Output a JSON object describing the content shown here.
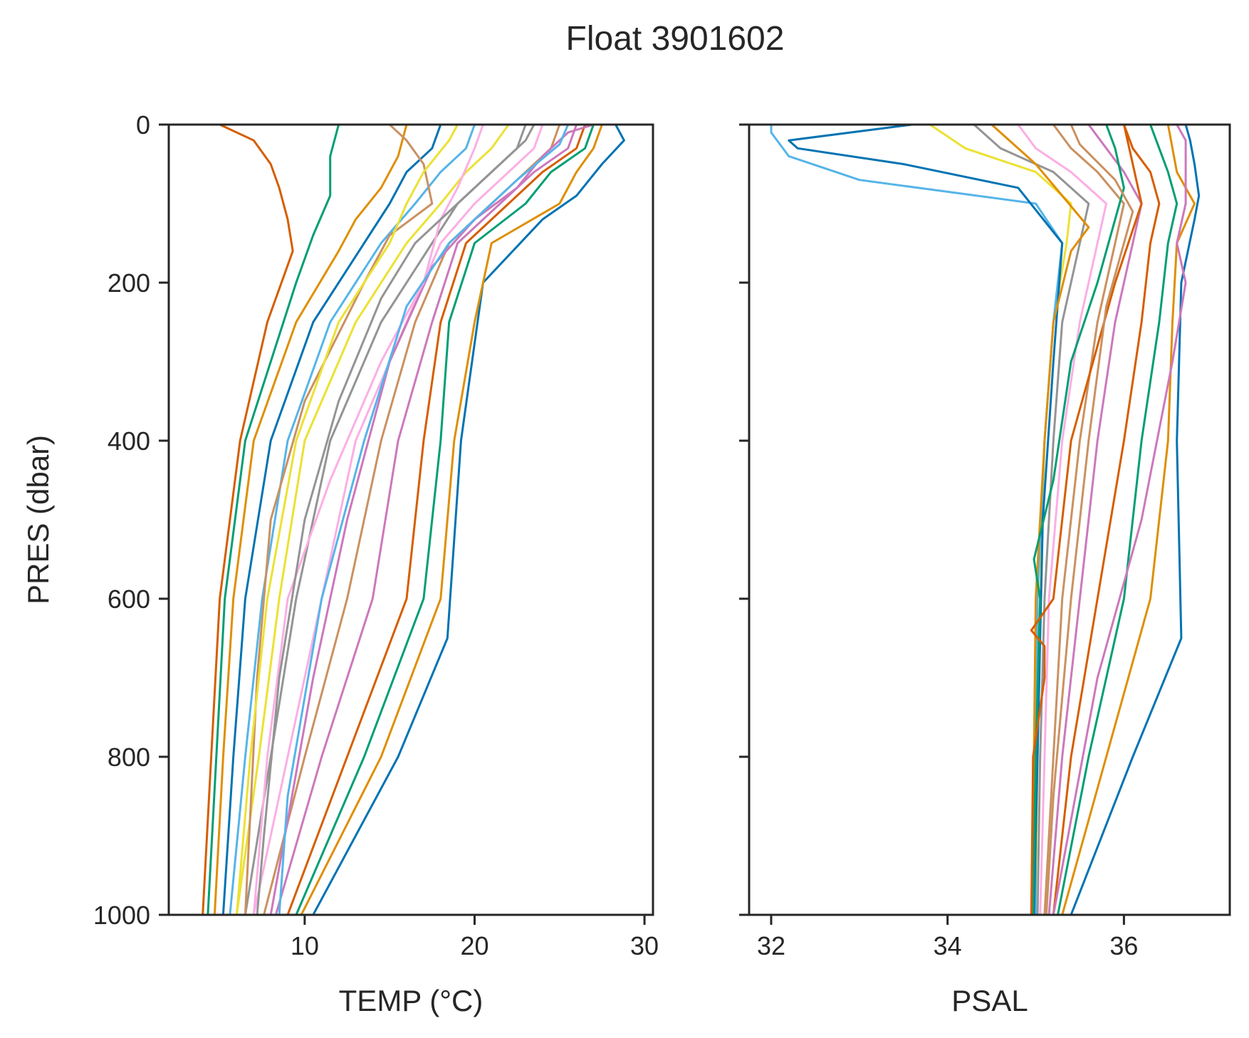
{
  "figure": {
    "title": "Float 3901602"
  },
  "palette": [
    "#0173b2",
    "#de8f05",
    "#029e73",
    "#d55e00",
    "#cc78bc",
    "#ca9161",
    "#fbafe4",
    "#949494",
    "#ece133",
    "#56b4e9"
  ],
  "chart_data": [
    {
      "type": "line",
      "panel": "left",
      "xlabel": "TEMP (°C)",
      "ylabel": "PRES (dbar)",
      "xlim": [
        2,
        30.5
      ],
      "ylim": [
        1000,
        0
      ],
      "y_inverted": true,
      "xticks": [
        10,
        20,
        30
      ],
      "yticks": [
        0,
        200,
        400,
        600,
        800,
        1000
      ],
      "grid": false,
      "legend": "none",
      "note": "approx. 100 Argo temperature profiles; representative subset captured below",
      "series": [
        {
          "pres": [
            0,
            20,
            50,
            90,
            120,
            200,
            400,
            650,
            800,
            1000
          ],
          "values": [
            28.3,
            28.8,
            27.5,
            26.0,
            24.0,
            20.5,
            19.2,
            18.4,
            15.5,
            10.5
          ]
        },
        {
          "pres": [
            0,
            30,
            60,
            100,
            150,
            250,
            400,
            600,
            800,
            1000
          ],
          "values": [
            27.5,
            27.0,
            26.0,
            25.0,
            21.0,
            20.0,
            18.8,
            18.0,
            14.5,
            9.8
          ]
        },
        {
          "pres": [
            0,
            30,
            60,
            100,
            150,
            250,
            400,
            600,
            800,
            1000
          ],
          "values": [
            27.0,
            26.5,
            24.5,
            23.0,
            20.0,
            18.5,
            18.0,
            17.0,
            13.5,
            9.5
          ]
        },
        {
          "pres": [
            0,
            30,
            60,
            100,
            150,
            250,
            400,
            600,
            800,
            1000
          ],
          "values": [
            26.5,
            26.0,
            24.0,
            22.0,
            19.5,
            18.0,
            17.0,
            16.0,
            12.5,
            9.0
          ]
        },
        {
          "pres": [
            0,
            30,
            60,
            100,
            150,
            250,
            400,
            600,
            800,
            1000
          ],
          "values": [
            26.0,
            25.5,
            23.5,
            21.5,
            19.0,
            17.5,
            15.5,
            14.0,
            11.0,
            8.3
          ]
        },
        {
          "pres": [
            0,
            30,
            60,
            100,
            150,
            250,
            400,
            600,
            800,
            1000
          ],
          "values": [
            25.0,
            24.5,
            23.0,
            21.0,
            18.5,
            16.5,
            14.5,
            12.5,
            10.0,
            7.6
          ]
        },
        {
          "pres": [
            0,
            30,
            60,
            100,
            150,
            250,
            400,
            600,
            800,
            1000
          ],
          "values": [
            24.0,
            23.5,
            22.0,
            20.0,
            18.0,
            16.0,
            13.0,
            11.0,
            9.0,
            7.0
          ]
        },
        {
          "pres": [
            0,
            30,
            60,
            100,
            150,
            250,
            400,
            600,
            800,
            1000
          ],
          "values": [
            23.0,
            22.5,
            21.0,
            19.0,
            17.5,
            14.5,
            11.5,
            9.5,
            8.0,
            6.5
          ]
        },
        {
          "pres": [
            0,
            30,
            60,
            100,
            150,
            250,
            400,
            600,
            800,
            1000
          ],
          "values": [
            22.0,
            21.0,
            19.5,
            18.0,
            16.0,
            13.0,
            10.0,
            8.5,
            7.3,
            6.0
          ]
        },
        {
          "pres": [
            0,
            30,
            60,
            100,
            150,
            250,
            400,
            600,
            800,
            1000
          ],
          "values": [
            20.0,
            19.5,
            18.0,
            16.5,
            14.5,
            11.5,
            9.0,
            7.5,
            6.5,
            5.6
          ]
        },
        {
          "pres": [
            0,
            30,
            60,
            100,
            150,
            250,
            400,
            600,
            800,
            1000
          ],
          "values": [
            18.0,
            17.5,
            16.0,
            15.0,
            13.5,
            10.5,
            8.0,
            6.5,
            5.8,
            5.2
          ]
        },
        {
          "pres": [
            0,
            40,
            80,
            120,
            160,
            250,
            400,
            600,
            800,
            1000
          ],
          "values": [
            16.0,
            15.5,
            14.5,
            13.0,
            12.0,
            9.5,
            7.0,
            5.8,
            5.2,
            4.7
          ]
        },
        {
          "pres": [
            0,
            40,
            90,
            140,
            200,
            300,
            400,
            600,
            800,
            1000
          ],
          "values": [
            12.0,
            11.5,
            11.5,
            10.5,
            9.5,
            8.0,
            6.5,
            5.3,
            4.8,
            4.3
          ]
        },
        {
          "pres": [
            0,
            20,
            50,
            80,
            120,
            160,
            250,
            400,
            600,
            800,
            1000
          ],
          "values": [
            5.0,
            7.0,
            8.0,
            8.5,
            9.0,
            9.3,
            7.8,
            6.2,
            5.0,
            4.5,
            4.0
          ]
        },
        {
          "pres": [
            0,
            10,
            40,
            80,
            120,
            180,
            300,
            500,
            700,
            1000
          ],
          "values": [
            27.0,
            25.5,
            24.0,
            22.5,
            20.0,
            17.5,
            15.0,
            12.5,
            10.5,
            8.0
          ]
        },
        {
          "pres": [
            0,
            20,
            50,
            100,
            140,
            200,
            350,
            500,
            700,
            1000
          ],
          "values": [
            15.0,
            16.0,
            17.0,
            17.5,
            15.0,
            13.5,
            10.0,
            8.0,
            7.2,
            6.5
          ]
        },
        {
          "pres": [
            0,
            30,
            80,
            120,
            200,
            300,
            450,
            600,
            800,
            1000
          ],
          "values": [
            20.5,
            20.0,
            19.0,
            18.0,
            17.0,
            14.5,
            11.5,
            9.0,
            7.8,
            7.0
          ]
        },
        {
          "pres": [
            0,
            20,
            60,
            100,
            150,
            220,
            350,
            500,
            700,
            900,
            1000
          ],
          "values": [
            23.5,
            23.0,
            21.0,
            19.0,
            16.5,
            14.5,
            12.0,
            10.0,
            8.5,
            7.6,
            7.2
          ]
        },
        {
          "pres": [
            0,
            20,
            60,
            100,
            150,
            250,
            400,
            600,
            800,
            1000
          ],
          "values": [
            19.0,
            18.5,
            17.0,
            16.0,
            15.0,
            12.0,
            9.5,
            7.8,
            6.8,
            6.0
          ]
        },
        {
          "pres": [
            0,
            25,
            70,
            110,
            150,
            230,
            400,
            600,
            850,
            1000
          ],
          "values": [
            25.5,
            25.0,
            22.5,
            20.5,
            18.5,
            16.0,
            13.5,
            11.0,
            9.0,
            8.5
          ]
        }
      ]
    },
    {
      "type": "line",
      "panel": "right",
      "xlabel": "PSAL",
      "ylabel": "",
      "xlim": [
        31.75,
        37.2
      ],
      "ylim": [
        1000,
        0
      ],
      "y_inverted": true,
      "xticks": [
        32,
        34,
        36
      ],
      "yticks": [
        0,
        200,
        400,
        600,
        800,
        1000
      ],
      "grid": false,
      "legend": "none",
      "note": "approx. 100 Argo salinity profiles; representative subset captured below",
      "series": [
        {
          "pres": [
            0,
            20,
            50,
            90,
            120,
            200,
            400,
            650,
            800,
            1000
          ],
          "values": [
            36.7,
            36.75,
            36.8,
            36.85,
            36.8,
            36.65,
            36.6,
            36.65,
            36.1,
            35.4
          ]
        },
        {
          "pres": [
            0,
            30,
            60,
            100,
            150,
            250,
            400,
            600,
            800,
            1000
          ],
          "values": [
            36.5,
            36.55,
            36.6,
            36.8,
            36.6,
            36.55,
            36.5,
            36.3,
            35.8,
            35.3
          ]
        },
        {
          "pres": [
            0,
            30,
            60,
            100,
            150,
            250,
            400,
            600,
            800,
            1000
          ],
          "values": [
            36.3,
            36.4,
            36.5,
            36.6,
            36.5,
            36.4,
            36.2,
            36.0,
            35.6,
            35.25
          ]
        },
        {
          "pres": [
            0,
            30,
            60,
            100,
            150,
            250,
            400,
            600,
            800,
            1000
          ],
          "values": [
            36.0,
            36.1,
            36.3,
            36.4,
            36.3,
            36.2,
            36.0,
            35.7,
            35.4,
            35.2
          ]
        },
        {
          "pres": [
            0,
            30,
            60,
            100,
            150,
            250,
            400,
            600,
            800,
            1000
          ],
          "values": [
            35.6,
            35.8,
            36.0,
            36.2,
            36.1,
            35.9,
            35.7,
            35.5,
            35.3,
            35.15
          ]
        },
        {
          "pres": [
            0,
            30,
            60,
            100,
            150,
            250,
            400,
            600,
            800,
            1000
          ],
          "values": [
            35.2,
            35.4,
            35.7,
            36.0,
            35.9,
            35.7,
            35.5,
            35.3,
            35.2,
            35.1
          ]
        },
        {
          "pres": [
            0,
            30,
            60,
            100,
            150,
            250,
            400,
            600,
            800,
            1000
          ],
          "values": [
            34.8,
            35.0,
            35.4,
            35.8,
            35.7,
            35.5,
            35.3,
            35.15,
            35.1,
            35.05
          ]
        },
        {
          "pres": [
            0,
            30,
            60,
            100,
            150,
            250,
            400,
            600,
            800,
            1000
          ],
          "values": [
            34.3,
            34.6,
            35.2,
            35.6,
            35.5,
            35.3,
            35.2,
            35.1,
            35.05,
            35.02
          ]
        },
        {
          "pres": [
            0,
            30,
            60,
            100,
            150,
            250,
            400,
            600,
            800,
            1000
          ],
          "values": [
            33.8,
            34.2,
            35.0,
            35.4,
            35.35,
            35.2,
            35.1,
            35.05,
            35.02,
            35.0
          ]
        },
        {
          "pres": [
            0,
            10,
            40,
            70,
            100,
            150,
            250,
            400,
            600,
            800,
            1000
          ],
          "values": [
            32.0,
            32.0,
            32.2,
            33.0,
            35.0,
            35.3,
            35.2,
            35.1,
            35.02,
            35.0,
            35.0
          ]
        },
        {
          "pres": [
            0,
            20,
            30,
            50,
            80,
            150,
            300,
            500,
            800,
            1000
          ],
          "values": [
            33.6,
            32.2,
            32.3,
            33.5,
            34.8,
            35.3,
            35.2,
            35.08,
            35.02,
            34.98
          ]
        },
        {
          "pres": [
            0,
            20,
            50,
            90,
            130,
            160,
            250,
            400,
            600,
            800,
            1000
          ],
          "values": [
            34.5,
            34.7,
            35.0,
            35.3,
            35.6,
            35.4,
            35.2,
            35.1,
            35.0,
            34.98,
            34.95
          ]
        },
        {
          "pres": [
            0,
            30,
            80,
            120,
            200,
            300,
            450,
            550,
            600,
            800,
            1000
          ],
          "values": [
            35.8,
            35.9,
            36.0,
            35.9,
            35.7,
            35.4,
            35.2,
            34.98,
            35.05,
            35.0,
            34.97
          ]
        },
        {
          "pres": [
            0,
            50,
            100,
            200,
            400,
            600,
            640,
            660,
            700,
            800,
            1000
          ],
          "values": [
            36.0,
            36.1,
            36.2,
            35.9,
            35.4,
            35.2,
            34.95,
            35.1,
            35.1,
            34.97,
            34.95
          ]
        },
        {
          "pres": [
            0,
            20,
            60,
            100,
            150,
            200,
            300,
            500,
            700,
            1000
          ],
          "values": [
            36.6,
            36.7,
            36.7,
            36.7,
            36.6,
            36.7,
            36.55,
            36.2,
            35.7,
            35.2
          ]
        },
        {
          "pres": [
            0,
            25,
            70,
            110,
            150,
            230,
            400,
            600,
            850,
            1000
          ],
          "values": [
            35.4,
            35.5,
            35.9,
            36.1,
            36.0,
            35.8,
            35.6,
            35.4,
            35.2,
            35.12
          ]
        }
      ]
    }
  ]
}
